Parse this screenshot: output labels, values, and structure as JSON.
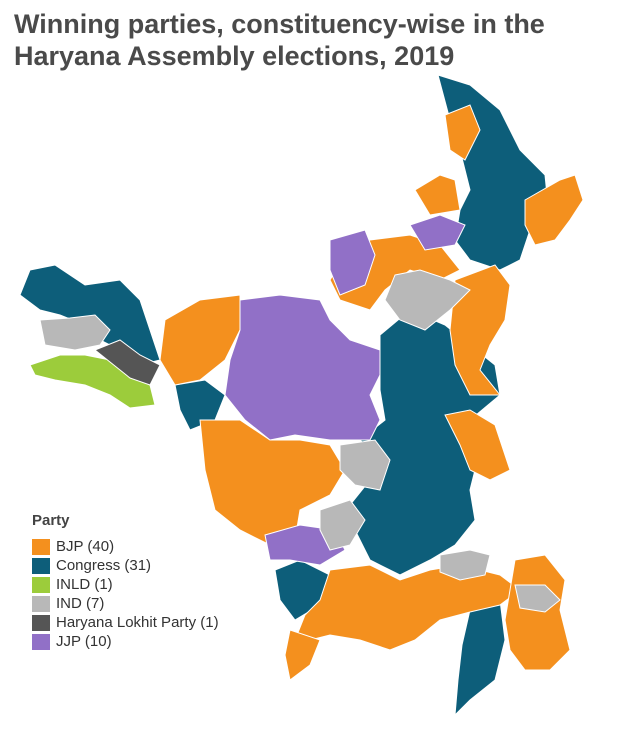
{
  "title": "Winning parties, constituency-wise in the Haryana Assembly elections, 2019",
  "legend": {
    "title": "Party",
    "items": [
      {
        "label": "BJP (40)",
        "party": "BJP",
        "seats": 40,
        "color": "#f4901e"
      },
      {
        "label": "Congress (31)",
        "party": "Congress",
        "seats": 31,
        "color": "#0d5e7a"
      },
      {
        "label": "INLD (1)",
        "party": "INLD",
        "seats": 1,
        "color": "#9ccc3b"
      },
      {
        "label": "IND (7)",
        "party": "IND",
        "seats": 7,
        "color": "#b8b8b8"
      },
      {
        "label": "Haryana Lokhit Party (1)",
        "party": "Haryana Lokhit Party",
        "seats": 1,
        "color": "#555555"
      },
      {
        "label": "JJP (10)",
        "party": "JJP",
        "seats": 10,
        "color": "#9170c7"
      }
    ]
  },
  "colors": {
    "BJP": "#f4901e",
    "Congress": "#0d5e7a",
    "INLD": "#9ccc3b",
    "IND": "#b8b8b8",
    "HLP": "#555555",
    "JJP": "#9170c7",
    "border": "#ffffff"
  }
}
